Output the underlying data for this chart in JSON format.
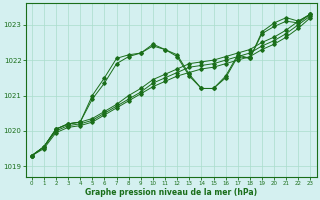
{
  "xlabel": "Graphe pression niveau de la mer (hPa)",
  "background_color": "#d4f0f0",
  "grid_color": "#aaddcc",
  "line_color": "#1a6e1a",
  "xlim": [
    -0.5,
    23.5
  ],
  "ylim": [
    1018.7,
    1023.6
  ],
  "yticks": [
    1019,
    1020,
    1021,
    1022,
    1023
  ],
  "xticks": [
    0,
    1,
    2,
    3,
    4,
    5,
    6,
    7,
    8,
    9,
    10,
    11,
    12,
    13,
    14,
    15,
    16,
    17,
    18,
    19,
    20,
    21,
    22,
    23
  ],
  "series": [
    {
      "x": [
        0,
        1,
        2,
        3,
        4,
        5,
        6,
        7,
        8,
        9,
        10,
        11,
        12,
        13,
        14,
        15,
        16,
        17,
        18,
        19,
        20,
        21,
        22,
        23
      ],
      "y": [
        1019.3,
        1019.55,
        1020.0,
        1020.15,
        1020.2,
        1020.3,
        1020.5,
        1020.7,
        1020.9,
        1021.1,
        1021.35,
        1021.5,
        1021.65,
        1021.8,
        1021.85,
        1021.9,
        1022.0,
        1022.1,
        1022.2,
        1022.4,
        1022.55,
        1022.75,
        1023.0,
        1023.25
      ]
    },
    {
      "x": [
        0,
        1,
        2,
        3,
        4,
        5,
        6,
        7,
        8,
        9,
        10,
        11,
        12,
        13,
        14,
        15,
        16,
        17,
        18,
        19,
        20,
        21,
        22,
        23
      ],
      "y": [
        1019.3,
        1019.55,
        1020.05,
        1020.2,
        1020.25,
        1020.35,
        1020.55,
        1020.75,
        1021.0,
        1021.2,
        1021.45,
        1021.6,
        1021.75,
        1021.9,
        1021.95,
        1022.0,
        1022.1,
        1022.2,
        1022.3,
        1022.5,
        1022.65,
        1022.85,
        1023.1,
        1023.3
      ]
    },
    {
      "x": [
        0,
        1,
        2,
        3,
        4,
        5,
        6,
        7,
        8,
        9,
        10,
        11,
        12,
        13,
        14,
        15,
        16,
        17,
        18,
        19,
        20,
        21,
        22,
        23
      ],
      "y": [
        1019.3,
        1019.5,
        1019.95,
        1020.1,
        1020.15,
        1020.25,
        1020.45,
        1020.65,
        1020.85,
        1021.05,
        1021.25,
        1021.4,
        1021.55,
        1021.65,
        1021.75,
        1021.8,
        1021.9,
        1022.0,
        1022.1,
        1022.3,
        1022.45,
        1022.65,
        1022.9,
        1023.2
      ]
    },
    {
      "x": [
        0,
        1,
        2,
        3,
        4,
        5,
        6,
        7,
        8,
        9,
        10,
        11,
        12,
        13,
        14,
        15,
        16,
        17,
        18,
        19,
        20,
        21,
        22,
        23
      ],
      "y": [
        1019.3,
        1019.55,
        1020.05,
        1020.2,
        1020.25,
        1020.9,
        1021.35,
        1021.9,
        1022.1,
        1022.2,
        1022.4,
        1022.3,
        1022.1,
        1021.55,
        1021.2,
        1021.2,
        1021.5,
        1022.1,
        1022.05,
        1022.75,
        1022.95,
        1023.1,
        1023.05,
        1023.3
      ]
    },
    {
      "x": [
        0,
        1,
        2,
        3,
        4,
        5,
        6,
        7,
        8,
        9,
        10,
        11,
        12,
        13,
        14,
        15,
        16,
        17,
        18,
        19,
        20,
        21,
        22,
        23
      ],
      "y": [
        1019.3,
        1019.55,
        1020.05,
        1020.2,
        1020.25,
        1021.0,
        1021.5,
        1022.05,
        1022.15,
        1022.2,
        1022.45,
        1022.3,
        1022.15,
        1021.6,
        1021.2,
        1021.2,
        1021.55,
        1022.15,
        1022.05,
        1022.8,
        1023.05,
        1023.2,
        1023.1,
        1023.3
      ]
    }
  ]
}
